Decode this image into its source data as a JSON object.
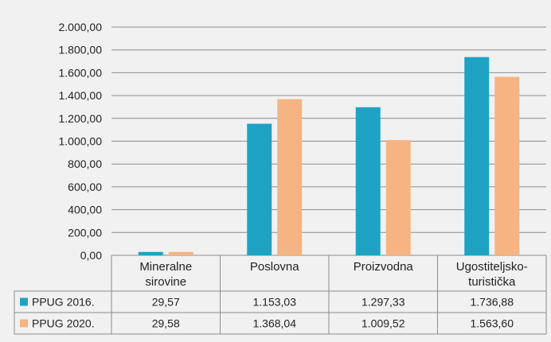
{
  "chart_data": {
    "type": "bar",
    "categories": [
      [
        "Mineralne",
        "sirovine"
      ],
      [
        "Poslovna"
      ],
      [
        "Proizvodna"
      ],
      [
        "Ugostiteljsko-",
        "turistička"
      ]
    ],
    "series": [
      {
        "name": "PPUG 2016.",
        "color": "#1fa3c4",
        "values": [
          29.57,
          1153.03,
          1297.33,
          1736.88
        ],
        "labels": [
          "29,57",
          "1.153,03",
          "1.297,33",
          "1.736,88"
        ]
      },
      {
        "name": "PPUG 2020.",
        "color": "#f5b482",
        "values": [
          29.58,
          1368.04,
          1009.52,
          1563.6
        ],
        "labels": [
          "29,58",
          "1.368,04",
          "1.009,52",
          "1.563,60"
        ]
      }
    ],
    "ylim": [
      0,
      2000
    ],
    "yticks": [
      0,
      200,
      400,
      600,
      800,
      1000,
      1200,
      1400,
      1600,
      1800,
      2000
    ],
    "ytick_labels": [
      "0,00",
      "200,00",
      "400,00",
      "600,00",
      "800,00",
      "1.000,00",
      "1.200,00",
      "1.400,00",
      "1.600,00",
      "1.800,00",
      "2.000,00"
    ],
    "grid": true,
    "legend": "data-table-left",
    "title": "",
    "xlabel": "",
    "ylabel": ""
  }
}
